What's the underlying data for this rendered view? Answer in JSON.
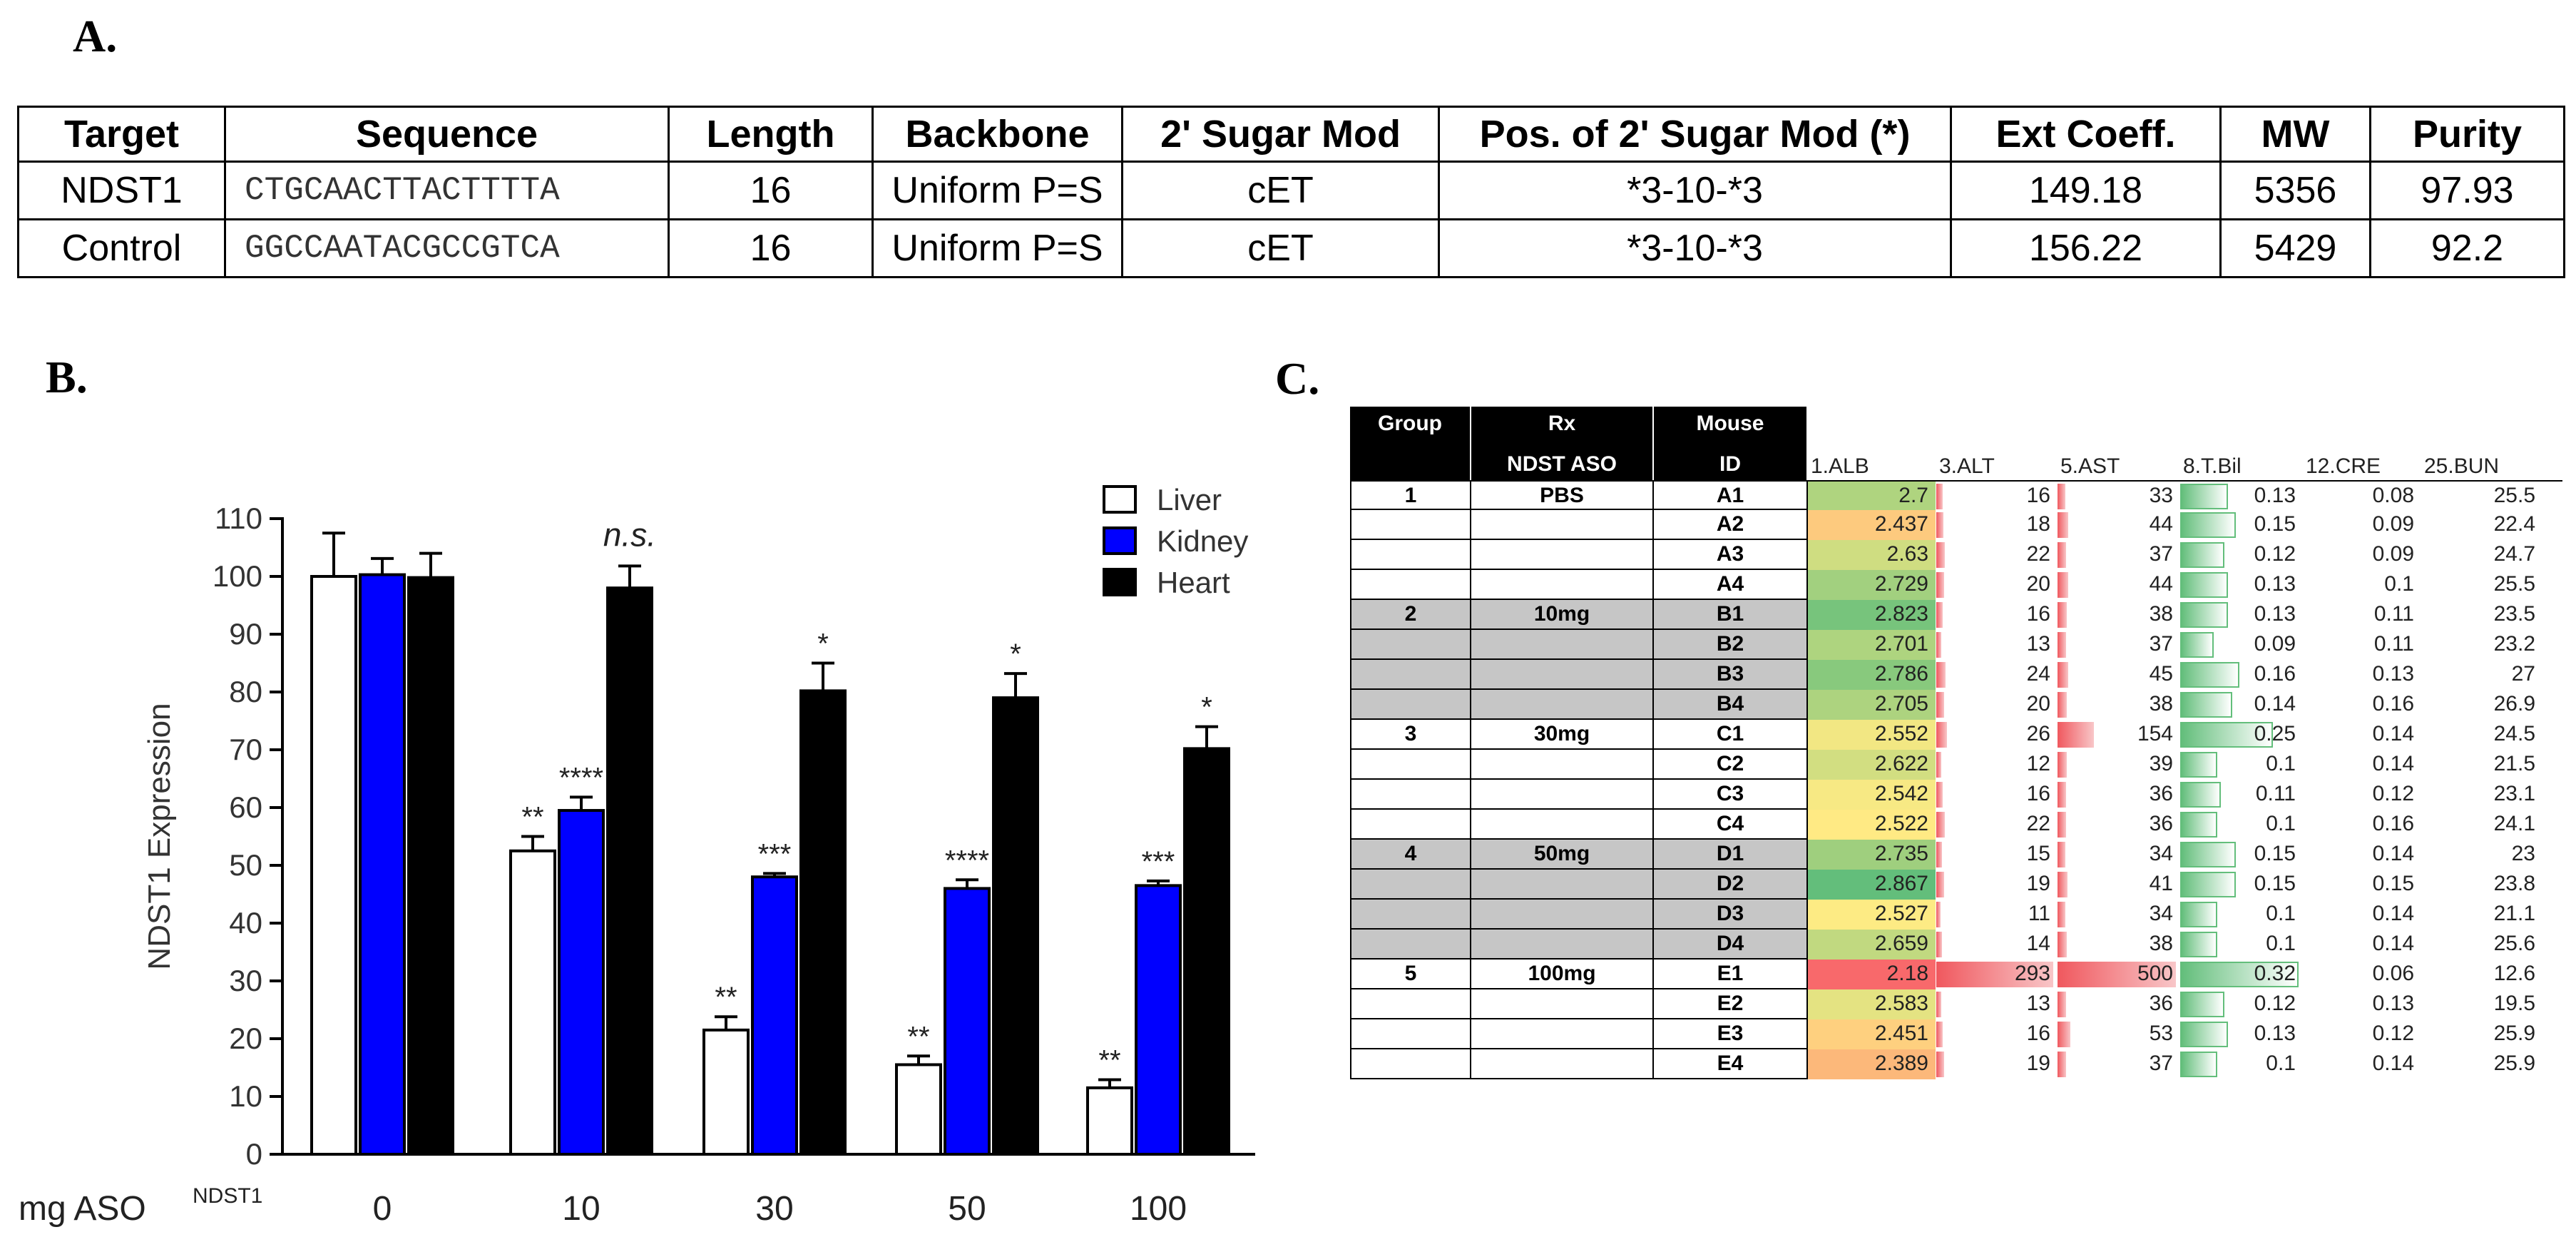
{
  "panel_labels": {
    "a": "A.",
    "b": "B.",
    "c": "C."
  },
  "table_a": {
    "headers": [
      "Target",
      "Sequence",
      "Length",
      "Backbone",
      "2' Sugar Mod",
      "Pos. of 2' Sugar Mod (*)",
      "Ext Coeff.",
      "MW",
      "Purity"
    ],
    "rows": [
      [
        "NDST1",
        "CTGCAACTTACTTTTA",
        "16",
        "Uniform P=S",
        "cET",
        "*3-10-*3",
        "149.18",
        "5356",
        "97.93"
      ],
      [
        "Control",
        "GGCCAATACGCCGTCA",
        "16",
        "Uniform P=S",
        "cET",
        "*3-10-*3",
        "156.22",
        "5429",
        "92.2"
      ]
    ]
  },
  "chart_data": {
    "type": "bar",
    "title": "",
    "xlabel": "mg ASO",
    "xlabel_superscript": "NDST1",
    "ylabel": "NDST1 Expression",
    "ylim": [
      0,
      110
    ],
    "yticks": [
      0,
      10,
      20,
      30,
      40,
      50,
      60,
      70,
      80,
      90,
      100,
      110
    ],
    "categories": [
      "0",
      "10",
      "30",
      "50",
      "100"
    ],
    "series": [
      {
        "name": "Liver",
        "color": "#ffffff",
        "values": [
          100,
          52.5,
          21.5,
          15.5,
          11.5
        ],
        "errors": [
          7.5,
          2.5,
          2.3,
          1.5,
          1.4
        ],
        "annotations": [
          "",
          "**",
          "**",
          "**",
          "**"
        ]
      },
      {
        "name": "Kidney",
        "color": "#0000ff",
        "values": [
          100.3,
          59.5,
          48,
          46,
          46.5
        ],
        "errors": [
          2.8,
          2.3,
          0.6,
          1.5,
          0.8
        ],
        "annotations": [
          "",
          "****",
          "***",
          "****",
          "***"
        ]
      },
      {
        "name": "Heart",
        "color": "#000000",
        "values": [
          99.8,
          98,
          80.2,
          79,
          70.2
        ],
        "errors": [
          4.2,
          3.8,
          4.8,
          4.2,
          3.8
        ],
        "annotations": [
          "",
          "n.s.",
          "*",
          "*",
          "*"
        ]
      }
    ],
    "legend_position": "top-right"
  },
  "table_c": {
    "headers": {
      "group": "Group",
      "rx_line1": "Rx",
      "rx_line2": "NDST ASO",
      "mouse_line1": "Mouse",
      "mouse_line2": "ID"
    },
    "metric_headers": [
      "1.ALB",
      "3.ALT",
      "5.AST",
      "8.T.Bil",
      "12.CRE",
      "25.BUN"
    ],
    "rows": [
      {
        "group": "1",
        "rx": "PBS",
        "id": "A1",
        "alb": "2.7",
        "alt": "16",
        "ast": "33",
        "tbil": "0.13",
        "cre": "0.08",
        "bun": "25.5",
        "shade": false
      },
      {
        "group": "",
        "rx": "",
        "id": "A2",
        "alb": "2.437",
        "alt": "18",
        "ast": "44",
        "tbil": "0.15",
        "cre": "0.09",
        "bun": "22.4",
        "shade": false
      },
      {
        "group": "",
        "rx": "",
        "id": "A3",
        "alb": "2.63",
        "alt": "22",
        "ast": "37",
        "tbil": "0.12",
        "cre": "0.09",
        "bun": "24.7",
        "shade": false
      },
      {
        "group": "",
        "rx": "",
        "id": "A4",
        "alb": "2.729",
        "alt": "20",
        "ast": "44",
        "tbil": "0.13",
        "cre": "0.1",
        "bun": "25.5",
        "shade": false
      },
      {
        "group": "2",
        "rx": "10mg",
        "id": "B1",
        "alb": "2.823",
        "alt": "16",
        "ast": "38",
        "tbil": "0.13",
        "cre": "0.11",
        "bun": "23.5",
        "shade": true
      },
      {
        "group": "",
        "rx": "",
        "id": "B2",
        "alb": "2.701",
        "alt": "13",
        "ast": "37",
        "tbil": "0.09",
        "cre": "0.11",
        "bun": "23.2",
        "shade": true
      },
      {
        "group": "",
        "rx": "",
        "id": "B3",
        "alb": "2.786",
        "alt": "24",
        "ast": "45",
        "tbil": "0.16",
        "cre": "0.13",
        "bun": "27",
        "shade": true
      },
      {
        "group": "",
        "rx": "",
        "id": "B4",
        "alb": "2.705",
        "alt": "20",
        "ast": "38",
        "tbil": "0.14",
        "cre": "0.16",
        "bun": "26.9",
        "shade": true
      },
      {
        "group": "3",
        "rx": "30mg",
        "id": "C1",
        "alb": "2.552",
        "alt": "26",
        "ast": "154",
        "tbil": "0.25",
        "cre": "0.14",
        "bun": "24.5",
        "shade": false
      },
      {
        "group": "",
        "rx": "",
        "id": "C2",
        "alb": "2.622",
        "alt": "12",
        "ast": "39",
        "tbil": "0.1",
        "cre": "0.14",
        "bun": "21.5",
        "shade": false
      },
      {
        "group": "",
        "rx": "",
        "id": "C3",
        "alb": "2.542",
        "alt": "16",
        "ast": "36",
        "tbil": "0.11",
        "cre": "0.12",
        "bun": "23.1",
        "shade": false
      },
      {
        "group": "",
        "rx": "",
        "id": "C4",
        "alb": "2.522",
        "alt": "22",
        "ast": "36",
        "tbil": "0.1",
        "cre": "0.16",
        "bun": "24.1",
        "shade": false
      },
      {
        "group": "4",
        "rx": "50mg",
        "id": "D1",
        "alb": "2.735",
        "alt": "15",
        "ast": "34",
        "tbil": "0.15",
        "cre": "0.14",
        "bun": "23",
        "shade": true
      },
      {
        "group": "",
        "rx": "",
        "id": "D2",
        "alb": "2.867",
        "alt": "19",
        "ast": "41",
        "tbil": "0.15",
        "cre": "0.15",
        "bun": "23.8",
        "shade": true
      },
      {
        "group": "",
        "rx": "",
        "id": "D3",
        "alb": "2.527",
        "alt": "11",
        "ast": "34",
        "tbil": "0.1",
        "cre": "0.14",
        "bun": "21.1",
        "shade": true
      },
      {
        "group": "",
        "rx": "",
        "id": "D4",
        "alb": "2.659",
        "alt": "14",
        "ast": "38",
        "tbil": "0.1",
        "cre": "0.14",
        "bun": "25.6",
        "shade": true
      },
      {
        "group": "5",
        "rx": "100mg",
        "id": "E1",
        "alb": "2.18",
        "alt": "293",
        "ast": "500",
        "tbil": "0.32",
        "cre": "0.06",
        "bun": "12.6",
        "shade": false
      },
      {
        "group": "",
        "rx": "",
        "id": "E2",
        "alb": "2.583",
        "alt": "13",
        "ast": "36",
        "tbil": "0.12",
        "cre": "0.13",
        "bun": "19.5",
        "shade": false
      },
      {
        "group": "",
        "rx": "",
        "id": "E3",
        "alb": "2.451",
        "alt": "16",
        "ast": "53",
        "tbil": "0.13",
        "cre": "0.12",
        "bun": "25.9",
        "shade": false
      },
      {
        "group": "",
        "rx": "",
        "id": "E4",
        "alb": "2.389",
        "alt": "19",
        "ast": "37",
        "tbil": "0.1",
        "cre": "0.14",
        "bun": "25.9",
        "shade": false
      }
    ],
    "colors": {
      "alb_low": "#f8696b",
      "alb_mid": "#ffeb84",
      "alb_high": "#63be7b",
      "bar_red": "#f0585e",
      "bar_green": "#63be7b",
      "shade": "#c6c6c6"
    }
  }
}
